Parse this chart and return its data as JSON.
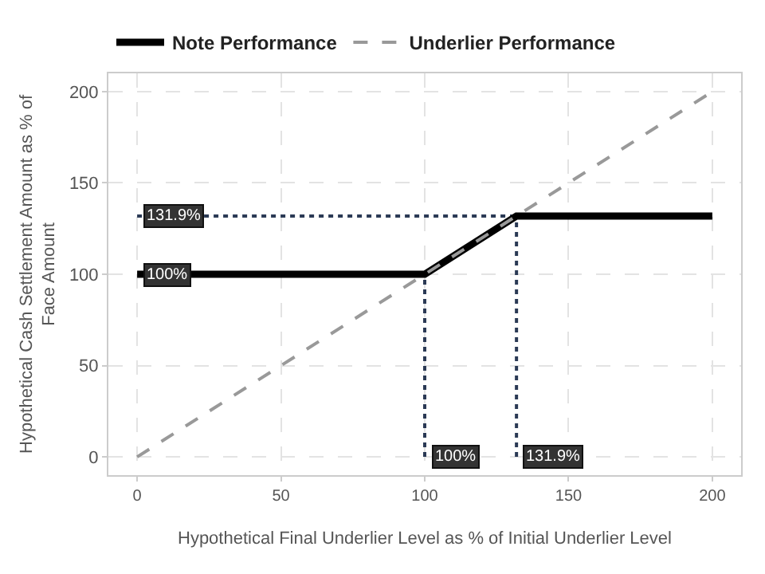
{
  "chart_data": {
    "type": "line",
    "xlabel": "Hypothetical Final Underlier Level as % of Initial Underlier Level",
    "ylabel": "Hypothetical Cash Settlement Amount as % of Face Amount",
    "series": [
      {
        "name": "Note Performance",
        "color": "#000000",
        "line_style": "solid",
        "x": [
          0,
          100,
          131.9,
          200
        ],
        "values": [
          100,
          100,
          131.9,
          131.9
        ]
      },
      {
        "name": "Underlier Performance",
        "color": "#999999",
        "line_style": "dashed",
        "x": [
          0,
          200
        ],
        "values": [
          0,
          200
        ]
      },
      {
        "color": "#2b3a55",
        "line_style": "dotted",
        "x": [
          0,
          131.9
        ],
        "values": [
          131.9,
          131.9
        ]
      },
      {
        "color": "#2b3a55",
        "line_style": "dotted",
        "x": [
          100,
          100
        ],
        "values": [
          0,
          100
        ]
      },
      {
        "color": "#2b3a55",
        "line_style": "dotted",
        "x": [
          131.9,
          131.9
        ],
        "values": [
          0,
          131.9
        ]
      }
    ],
    "xlim": [
      -10,
      210
    ],
    "ylim": [
      -10,
      210
    ],
    "xticks": [
      0,
      50,
      100,
      150,
      200
    ],
    "yticks": [
      0,
      50,
      100,
      150,
      200
    ],
    "grid": true,
    "legend": "top",
    "annotations": [
      {
        "text": "131.9%",
        "x": 0,
        "y": 131.9
      },
      {
        "text": "100%",
        "x": 0,
        "y": 100
      },
      {
        "text": "100%",
        "x": 100,
        "y": 0
      },
      {
        "text": "131.9%",
        "x": 131.9,
        "y": 0
      }
    ]
  }
}
